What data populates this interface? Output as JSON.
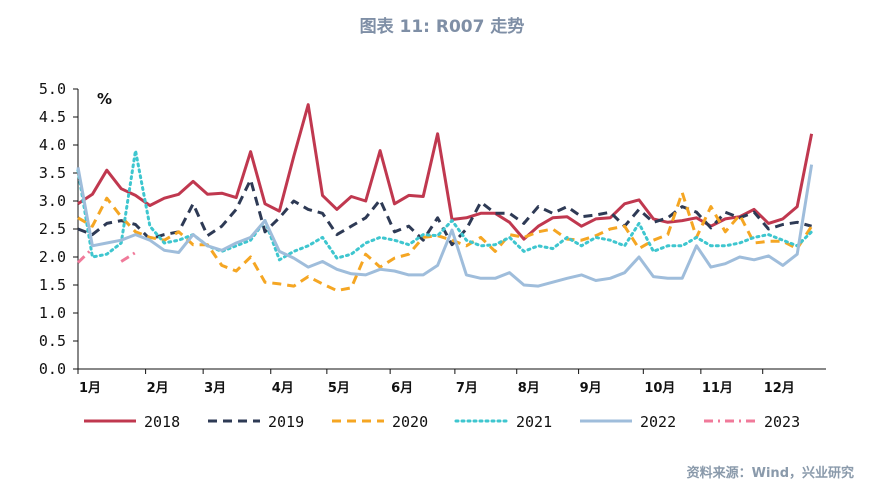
{
  "title": "图表 11: R007 走势",
  "source": "资料来源：Wind，兴业研究",
  "chart_data": {
    "type": "line",
    "unit_label": "%",
    "ylim": [
      0,
      5
    ],
    "yticks": [
      "0.0",
      "0.5",
      "1.0",
      "1.5",
      "2.0",
      "2.5",
      "3.0",
      "3.5",
      "4.0",
      "4.5",
      "5.0"
    ],
    "x_tick_labels": [
      {
        "label": "1月",
        "x": 0
      },
      {
        "label": "2月",
        "x": 4.7
      },
      {
        "label": "3月",
        "x": 8.7
      },
      {
        "label": "4月",
        "x": 13.4
      },
      {
        "label": "5月",
        "x": 17.3
      },
      {
        "label": "6月",
        "x": 21.7
      },
      {
        "label": "7月",
        "x": 26.2
      },
      {
        "label": "8月",
        "x": 30.5
      },
      {
        "label": "9月",
        "x": 34.8
      },
      {
        "label": "10月",
        "x": 39.3
      },
      {
        "label": "11月",
        "x": 43.3
      },
      {
        "label": "12月",
        "x": 47.6
      }
    ],
    "x_range": [
      0,
      52
    ],
    "grid": false,
    "legend_position": "bottom",
    "series": [
      {
        "name": "2018",
        "color": "#c0384f",
        "style": "solid",
        "values": [
          2.95,
          3.12,
          3.55,
          3.22,
          3.1,
          2.92,
          3.05,
          3.12,
          3.35,
          3.12,
          3.14,
          3.06,
          3.88,
          2.95,
          2.82,
          3.8,
          4.72,
          3.1,
          2.85,
          3.08,
          3.0,
          3.9,
          2.95,
          3.1,
          3.08,
          4.2,
          2.67,
          2.7,
          2.78,
          2.78,
          2.62,
          2.32,
          2.55,
          2.7,
          2.72,
          2.55,
          2.68,
          2.7,
          2.95,
          3.02,
          2.68,
          2.62,
          2.65,
          2.7,
          2.55,
          2.68,
          2.72,
          2.85,
          2.6,
          2.68,
          2.9,
          4.2
        ]
      },
      {
        "name": "2019",
        "color": "#2e3a55",
        "style": "dash",
        "values": [
          2.5,
          2.4,
          2.6,
          2.65,
          2.58,
          2.32,
          2.4,
          2.45,
          2.95,
          2.38,
          2.55,
          2.85,
          3.38,
          2.45,
          2.7,
          3.0,
          2.85,
          2.78,
          2.4,
          2.55,
          2.7,
          3.02,
          2.45,
          2.55,
          2.3,
          2.7,
          2.22,
          2.5,
          2.98,
          2.78,
          2.78,
          2.6,
          2.9,
          2.78,
          2.9,
          2.72,
          2.75,
          2.8,
          2.55,
          2.85,
          2.62,
          2.7,
          2.9,
          2.8,
          2.52,
          2.8,
          2.7,
          2.8,
          2.5,
          2.58,
          2.62,
          2.55
        ]
      },
      {
        "name": "2020",
        "color": "#f5a623",
        "style": "dash",
        "values": [
          2.7,
          2.55,
          3.05,
          2.72,
          2.45,
          2.35,
          2.3,
          2.45,
          2.22,
          2.22,
          1.85,
          1.75,
          2.0,
          1.55,
          1.52,
          1.48,
          1.65,
          1.52,
          1.4,
          1.45,
          2.05,
          1.82,
          1.98,
          2.05,
          2.35,
          2.38,
          2.3,
          2.2,
          2.35,
          2.1,
          2.4,
          2.35,
          2.45,
          2.5,
          2.32,
          2.3,
          2.38,
          2.5,
          2.55,
          2.15,
          2.3,
          2.4,
          3.15,
          2.35,
          2.9,
          2.45,
          2.75,
          2.25,
          2.28,
          2.28,
          2.15,
          2.55
        ]
      },
      {
        "name": "2021",
        "color": "#3ec6cf",
        "style": "dot",
        "values": [
          3.55,
          2.0,
          2.05,
          2.25,
          3.9,
          2.55,
          2.25,
          2.3,
          2.4,
          2.2,
          2.1,
          2.2,
          2.3,
          2.65,
          1.95,
          2.1,
          2.2,
          2.35,
          1.98,
          2.05,
          2.25,
          2.35,
          2.3,
          2.22,
          2.4,
          2.38,
          2.65,
          2.3,
          2.2,
          2.22,
          2.35,
          2.1,
          2.2,
          2.15,
          2.35,
          2.2,
          2.35,
          2.3,
          2.2,
          2.6,
          2.1,
          2.2,
          2.2,
          2.35,
          2.2,
          2.2,
          2.25,
          2.35,
          2.4,
          2.3,
          2.2,
          2.45
        ]
      },
      {
        "name": "2022",
        "color": "#9fbddb",
        "style": "solid",
        "values": [
          3.6,
          2.2,
          2.25,
          2.3,
          2.4,
          2.3,
          2.12,
          2.08,
          2.4,
          2.2,
          2.12,
          2.25,
          2.35,
          2.65,
          2.1,
          1.98,
          1.82,
          1.92,
          1.78,
          1.7,
          1.68,
          1.78,
          1.75,
          1.68,
          1.68,
          1.85,
          2.48,
          1.68,
          1.62,
          1.62,
          1.72,
          1.5,
          1.48,
          1.55,
          1.62,
          1.68,
          1.58,
          1.62,
          1.72,
          2.0,
          1.65,
          1.62,
          1.62,
          2.2,
          1.82,
          1.88,
          2.0,
          1.95,
          2.02,
          1.85,
          2.05,
          3.65
        ]
      },
      {
        "name": "2023",
        "color": "#f07a9a",
        "style": "dashdot",
        "values": [
          1.9,
          2.15,
          null,
          1.92,
          2.08
        ]
      }
    ]
  }
}
